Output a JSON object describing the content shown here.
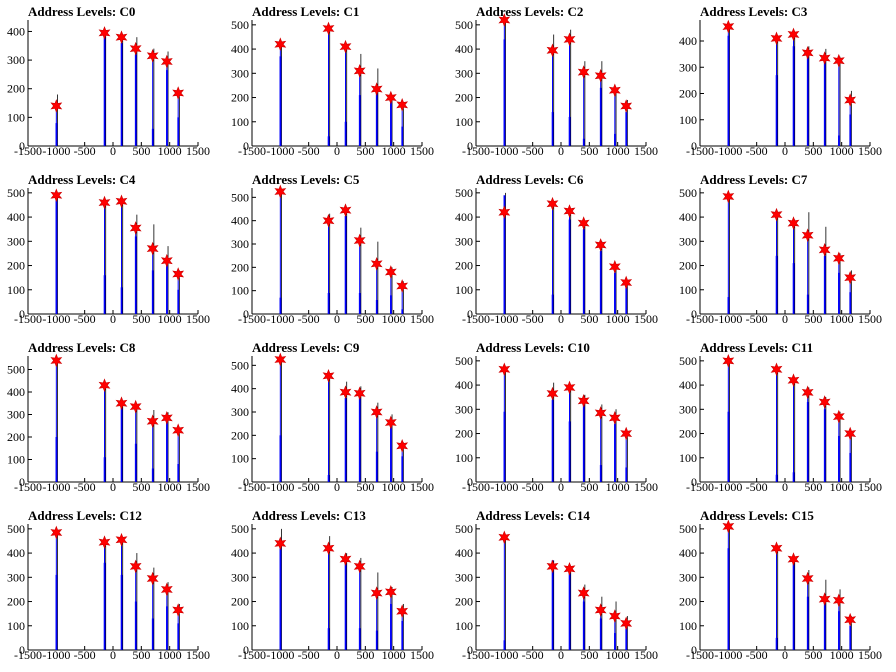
{
  "figure": {
    "x_ticks": [
      -1500,
      -1000,
      -500,
      0,
      500,
      1000,
      1500
    ],
    "x_range": [
      -1500,
      1500
    ],
    "colors": {
      "histogram": "#0000ff",
      "spike": "#000000",
      "marker": "#ff0000",
      "axis": "#000000"
    }
  },
  "chart_data": [
    {
      "title": "Address Levels: C0",
      "type": "bar",
      "ylim": [
        0,
        440
      ],
      "yticks": [
        0,
        100,
        200,
        300,
        400
      ],
      "marker_x": [
        -1000,
        -150,
        150,
        400,
        700,
        950,
        1150
      ],
      "marker_y": [
        140,
        395,
        380,
        340,
        315,
        295,
        185
      ],
      "blue_y": [
        80,
        385,
        360,
        320,
        60,
        265,
        100
      ],
      "spike_y": [
        180,
        395,
        385,
        380,
        340,
        330,
        190
      ]
    },
    {
      "title": "Address Levels: C1",
      "type": "bar",
      "ylim": [
        0,
        520
      ],
      "yticks": [
        0,
        100,
        200,
        300,
        400,
        500
      ],
      "marker_x": [
        -1000,
        -150,
        150,
        400,
        700,
        950,
        1150
      ],
      "marker_y": [
        420,
        485,
        410,
        310,
        235,
        200,
        170
      ],
      "blue_y": [
        370,
        40,
        100,
        210,
        230,
        200,
        80
      ],
      "spike_y": [
        430,
        490,
        420,
        380,
        320,
        200,
        180
      ]
    },
    {
      "title": "Address Levels: C2",
      "type": "bar",
      "ylim": [
        0,
        520
      ],
      "yticks": [
        0,
        100,
        200,
        300,
        400,
        500
      ],
      "marker_x": [
        -1000,
        -150,
        150,
        400,
        700,
        950,
        1150
      ],
      "marker_y": [
        520,
        395,
        440,
        305,
        290,
        230,
        165
      ],
      "blue_y": [
        440,
        140,
        120,
        30,
        240,
        50,
        140
      ],
      "spike_y": [
        530,
        460,
        480,
        350,
        350,
        240,
        190
      ]
    },
    {
      "title": "Address Levels: C3",
      "type": "bar",
      "ylim": [
        0,
        480
      ],
      "yticks": [
        0,
        100,
        200,
        300,
        400
      ],
      "marker_x": [
        -1000,
        -150,
        150,
        400,
        700,
        950,
        1150
      ],
      "marker_y": [
        455,
        410,
        425,
        355,
        335,
        325,
        175
      ],
      "blue_y": [
        420,
        270,
        380,
        350,
        330,
        40,
        120
      ],
      "spike_y": [
        460,
        420,
        430,
        380,
        370,
        340,
        210
      ]
    },
    {
      "title": "Address Levels: C4",
      "type": "bar",
      "ylim": [
        0,
        520
      ],
      "yticks": [
        0,
        100,
        200,
        300,
        400,
        500
      ],
      "marker_x": [
        -1000,
        -150,
        150,
        400,
        700,
        950,
        1150
      ],
      "marker_y": [
        490,
        460,
        465,
        355,
        270,
        220,
        165
      ],
      "blue_y": [
        470,
        160,
        110,
        320,
        180,
        210,
        100
      ],
      "spike_y": [
        500,
        470,
        470,
        410,
        370,
        280,
        180
      ]
    },
    {
      "title": "Address Levels: C5",
      "type": "bar",
      "ylim": [
        0,
        540
      ],
      "yticks": [
        0,
        100,
        200,
        300,
        400,
        500
      ],
      "marker_x": [
        -1000,
        -150,
        150,
        400,
        700,
        950,
        1150
      ],
      "marker_y": [
        525,
        400,
        445,
        315,
        215,
        180,
        120
      ],
      "blue_y": [
        70,
        90,
        420,
        90,
        60,
        80,
        20
      ],
      "spike_y": [
        530,
        430,
        450,
        370,
        310,
        200,
        140
      ]
    },
    {
      "title": "Address Levels: C6",
      "type": "bar",
      "ylim": [
        0,
        520
      ],
      "yticks": [
        0,
        100,
        200,
        300,
        400,
        500
      ],
      "marker_x": [
        -1000,
        -150,
        150,
        400,
        700,
        950,
        1150
      ],
      "marker_y": [
        420,
        455,
        425,
        375,
        285,
        195,
        130
      ],
      "blue_y": [
        490,
        80,
        390,
        350,
        260,
        170,
        120
      ],
      "spike_y": [
        500,
        460,
        430,
        380,
        300,
        200,
        140
      ]
    },
    {
      "title": "Address Levels: C7",
      "type": "bar",
      "ylim": [
        0,
        520
      ],
      "yticks": [
        0,
        100,
        200,
        300,
        400,
        500
      ],
      "marker_x": [
        -1000,
        -150,
        150,
        400,
        700,
        950,
        1150
      ],
      "marker_y": [
        485,
        410,
        375,
        325,
        265,
        230,
        150
      ],
      "blue_y": [
        70,
        240,
        210,
        80,
        240,
        170,
        90
      ],
      "spike_y": [
        490,
        420,
        390,
        420,
        360,
        250,
        180
      ]
    },
    {
      "title": "Address Levels: C8",
      "type": "bar",
      "ylim": [
        0,
        560
      ],
      "yticks": [
        0,
        100,
        200,
        300,
        400,
        500
      ],
      "marker_x": [
        -1000,
        -150,
        150,
        400,
        700,
        950,
        1150
      ],
      "marker_y": [
        540,
        430,
        350,
        335,
        270,
        285,
        230
      ],
      "blue_y": [
        200,
        110,
        370,
        170,
        60,
        280,
        80
      ],
      "spike_y": [
        550,
        440,
        360,
        340,
        320,
        310,
        240
      ]
    },
    {
      "title": "Address Levels: C9",
      "type": "bar",
      "ylim": [
        0,
        540
      ],
      "yticks": [
        0,
        100,
        200,
        300,
        400,
        500
      ],
      "marker_x": [
        -1000,
        -150,
        150,
        400,
        700,
        950,
        1150
      ],
      "marker_y": [
        525,
        455,
        385,
        380,
        300,
        255,
        155
      ],
      "blue_y": [
        200,
        30,
        360,
        360,
        130,
        240,
        110
      ],
      "spike_y": [
        530,
        460,
        430,
        410,
        340,
        290,
        170
      ]
    },
    {
      "title": "Address Levels: C10",
      "type": "bar",
      "ylim": [
        0,
        520
      ],
      "yticks": [
        0,
        100,
        200,
        300,
        400,
        500
      ],
      "marker_x": [
        -1000,
        -150,
        150,
        400,
        700,
        950,
        1150
      ],
      "marker_y": [
        465,
        365,
        390,
        335,
        285,
        265,
        200
      ],
      "blue_y": [
        290,
        340,
        250,
        320,
        70,
        240,
        60
      ],
      "spike_y": [
        470,
        410,
        400,
        360,
        320,
        300,
        210
      ]
    },
    {
      "title": "Address Levels: C11",
      "type": "bar",
      "ylim": [
        0,
        520
      ],
      "yticks": [
        0,
        100,
        200,
        300,
        400,
        500
      ],
      "marker_x": [
        -1000,
        -150,
        150,
        400,
        700,
        950,
        1150
      ],
      "marker_y": [
        500,
        465,
        420,
        370,
        330,
        270,
        200
      ],
      "blue_y": [
        290,
        30,
        40,
        330,
        300,
        190,
        120
      ],
      "spike_y": [
        510,
        470,
        430,
        390,
        350,
        290,
        210
      ]
    },
    {
      "title": "Address Levels: C12",
      "type": "bar",
      "ylim": [
        0,
        520
      ],
      "yticks": [
        0,
        100,
        200,
        300,
        400,
        500
      ],
      "marker_x": [
        -1000,
        -150,
        150,
        400,
        700,
        950,
        1150
      ],
      "marker_y": [
        485,
        445,
        455,
        345,
        295,
        250,
        165
      ],
      "blue_y": [
        310,
        360,
        310,
        200,
        130,
        180,
        110
      ],
      "spike_y": [
        490,
        450,
        460,
        400,
        340,
        280,
        190
      ]
    },
    {
      "title": "Address Levels: C13",
      "type": "bar",
      "ylim": [
        0,
        520
      ],
      "yticks": [
        0,
        100,
        200,
        300,
        400,
        500
      ],
      "marker_x": [
        -1000,
        -150,
        150,
        400,
        700,
        950,
        1150
      ],
      "marker_y": [
        440,
        420,
        375,
        345,
        235,
        240,
        160
      ],
      "blue_y": [
        460,
        90,
        360,
        90,
        80,
        190,
        120
      ],
      "spike_y": [
        500,
        470,
        400,
        380,
        320,
        260,
        190
      ]
    },
    {
      "title": "Address Levels: C14",
      "type": "bar",
      "ylim": [
        0,
        520
      ],
      "yticks": [
        0,
        100,
        200,
        300,
        400,
        500
      ],
      "marker_x": [
        -1000,
        -150,
        150,
        400,
        700,
        950,
        1150
      ],
      "marker_y": [
        465,
        345,
        335,
        235,
        165,
        140,
        110
      ],
      "blue_y": [
        40,
        370,
        320,
        200,
        130,
        70,
        90
      ],
      "spike_y": [
        470,
        370,
        340,
        270,
        220,
        200,
        140
      ]
    },
    {
      "title": "Address Levels: C15",
      "type": "bar",
      "ylim": [
        0,
        520
      ],
      "yticks": [
        0,
        100,
        200,
        300,
        400,
        500
      ],
      "marker_x": [
        -1000,
        -150,
        150,
        400,
        700,
        950,
        1150
      ],
      "marker_y": [
        510,
        420,
        375,
        295,
        210,
        205,
        125
      ],
      "blue_y": [
        420,
        50,
        380,
        220,
        200,
        160,
        100
      ],
      "spike_y": [
        520,
        430,
        380,
        330,
        290,
        250,
        140
      ]
    }
  ]
}
